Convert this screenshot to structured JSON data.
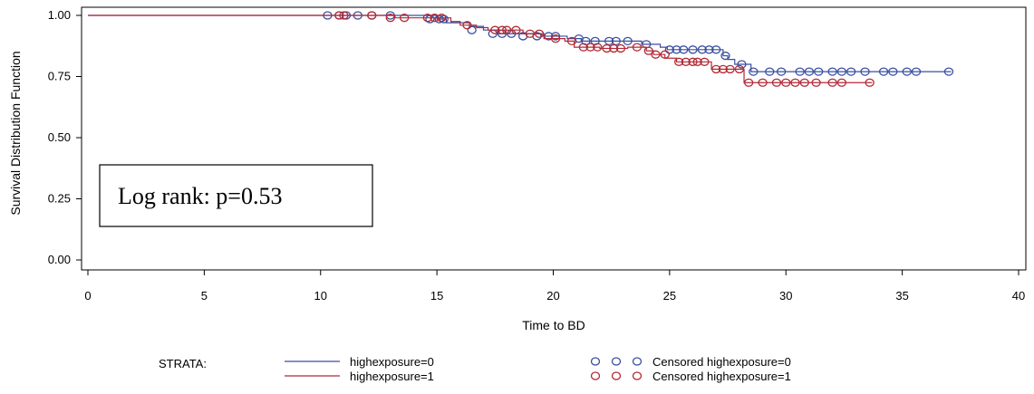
{
  "chart_data": {
    "type": "line",
    "title": "",
    "xlabel": "Time to BD",
    "ylabel": "Survival Distribution Function",
    "xlim": [
      0,
      40
    ],
    "ylim": [
      0,
      1
    ],
    "x_ticks": [
      "0",
      "5",
      "10",
      "15",
      "20",
      "25",
      "30",
      "35",
      "40"
    ],
    "y_ticks": [
      "0.00",
      "0.25",
      "0.50",
      "0.75",
      "1.00"
    ],
    "grid": false,
    "legend_position": "bottom",
    "legend_title": "STRATA:",
    "annotation": "Log rank: p=0.53",
    "series": [
      {
        "name": "highexposure=0",
        "censored_name": "Censored highexposure=0",
        "color": "#3a4fa0",
        "steps": [
          [
            0,
            1.0
          ],
          [
            15.0,
            0.985
          ],
          [
            15.4,
            0.97
          ],
          [
            16.4,
            0.955
          ],
          [
            17.0,
            0.94
          ],
          [
            17.6,
            0.925
          ],
          [
            19.5,
            0.915
          ],
          [
            20.6,
            0.905
          ],
          [
            21.2,
            0.895
          ],
          [
            23.8,
            0.882
          ],
          [
            24.6,
            0.87
          ],
          [
            24.9,
            0.86
          ],
          [
            27.3,
            0.835
          ],
          [
            27.5,
            0.82
          ],
          [
            27.8,
            0.8
          ],
          [
            28.5,
            0.77
          ],
          [
            37.1,
            0.77
          ]
        ],
        "censored": [
          [
            10.3,
            1.0
          ],
          [
            10.8,
            1.0
          ],
          [
            11.1,
            1.0
          ],
          [
            11.6,
            1.0
          ],
          [
            12.2,
            1.0
          ],
          [
            13.0,
            1.0
          ],
          [
            14.7,
            0.985
          ],
          [
            15.1,
            0.985
          ],
          [
            15.3,
            0.985
          ],
          [
            16.5,
            0.94
          ],
          [
            17.4,
            0.925
          ],
          [
            17.8,
            0.925
          ],
          [
            18.2,
            0.925
          ],
          [
            18.7,
            0.915
          ],
          [
            19.3,
            0.915
          ],
          [
            19.8,
            0.915
          ],
          [
            20.1,
            0.915
          ],
          [
            21.1,
            0.905
          ],
          [
            21.4,
            0.895
          ],
          [
            21.8,
            0.895
          ],
          [
            22.4,
            0.895
          ],
          [
            22.7,
            0.895
          ],
          [
            23.2,
            0.895
          ],
          [
            24.0,
            0.882
          ],
          [
            25.0,
            0.86
          ],
          [
            25.3,
            0.86
          ],
          [
            25.6,
            0.86
          ],
          [
            26.0,
            0.86
          ],
          [
            26.4,
            0.86
          ],
          [
            26.7,
            0.86
          ],
          [
            27.0,
            0.86
          ],
          [
            27.4,
            0.835
          ],
          [
            28.1,
            0.8
          ],
          [
            28.6,
            0.77
          ],
          [
            29.3,
            0.77
          ],
          [
            29.8,
            0.77
          ],
          [
            30.6,
            0.77
          ],
          [
            31.0,
            0.77
          ],
          [
            31.4,
            0.77
          ],
          [
            32.0,
            0.77
          ],
          [
            32.4,
            0.77
          ],
          [
            32.8,
            0.77
          ],
          [
            33.4,
            0.77
          ],
          [
            34.2,
            0.77
          ],
          [
            34.6,
            0.77
          ],
          [
            35.2,
            0.77
          ],
          [
            35.6,
            0.77
          ],
          [
            37.0,
            0.77
          ]
        ]
      },
      {
        "name": "highexposure=1",
        "censored_name": "Censored highexposure=1",
        "color": "#b22a35",
        "steps": [
          [
            0,
            1.0
          ],
          [
            13.2,
            0.99
          ],
          [
            15.6,
            0.975
          ],
          [
            16.0,
            0.96
          ],
          [
            16.7,
            0.95
          ],
          [
            17.2,
            0.94
          ],
          [
            18.7,
            0.925
          ],
          [
            19.6,
            0.905
          ],
          [
            20.5,
            0.895
          ],
          [
            20.9,
            0.87
          ],
          [
            22.0,
            0.865
          ],
          [
            23.2,
            0.87
          ],
          [
            24.0,
            0.855
          ],
          [
            24.3,
            0.84
          ],
          [
            24.8,
            0.825
          ],
          [
            25.3,
            0.81
          ],
          [
            26.8,
            0.78
          ],
          [
            28.2,
            0.725
          ],
          [
            33.7,
            0.725
          ]
        ],
        "censored": [
          [
            10.8,
            1.0
          ],
          [
            11.0,
            1.0
          ],
          [
            12.2,
            1.0
          ],
          [
            13.0,
            0.99
          ],
          [
            13.6,
            0.99
          ],
          [
            14.6,
            0.99
          ],
          [
            14.9,
            0.99
          ],
          [
            15.2,
            0.99
          ],
          [
            16.3,
            0.96
          ],
          [
            17.5,
            0.94
          ],
          [
            17.8,
            0.94
          ],
          [
            18.0,
            0.94
          ],
          [
            18.4,
            0.94
          ],
          [
            19.0,
            0.925
          ],
          [
            19.4,
            0.925
          ],
          [
            20.1,
            0.905
          ],
          [
            20.8,
            0.895
          ],
          [
            21.3,
            0.87
          ],
          [
            21.6,
            0.87
          ],
          [
            21.9,
            0.87
          ],
          [
            22.3,
            0.865
          ],
          [
            22.6,
            0.865
          ],
          [
            22.9,
            0.865
          ],
          [
            23.6,
            0.87
          ],
          [
            24.1,
            0.855
          ],
          [
            24.4,
            0.84
          ],
          [
            24.8,
            0.84
          ],
          [
            25.4,
            0.81
          ],
          [
            25.7,
            0.81
          ],
          [
            26.0,
            0.81
          ],
          [
            26.2,
            0.81
          ],
          [
            26.5,
            0.81
          ],
          [
            27.0,
            0.78
          ],
          [
            27.3,
            0.78
          ],
          [
            27.6,
            0.78
          ],
          [
            28.0,
            0.78
          ],
          [
            28.4,
            0.725
          ],
          [
            29.0,
            0.725
          ],
          [
            29.6,
            0.725
          ],
          [
            30.0,
            0.725
          ],
          [
            30.4,
            0.725
          ],
          [
            30.8,
            0.725
          ],
          [
            31.3,
            0.725
          ],
          [
            32.0,
            0.725
          ],
          [
            32.4,
            0.725
          ],
          [
            33.6,
            0.725
          ]
        ]
      }
    ]
  }
}
